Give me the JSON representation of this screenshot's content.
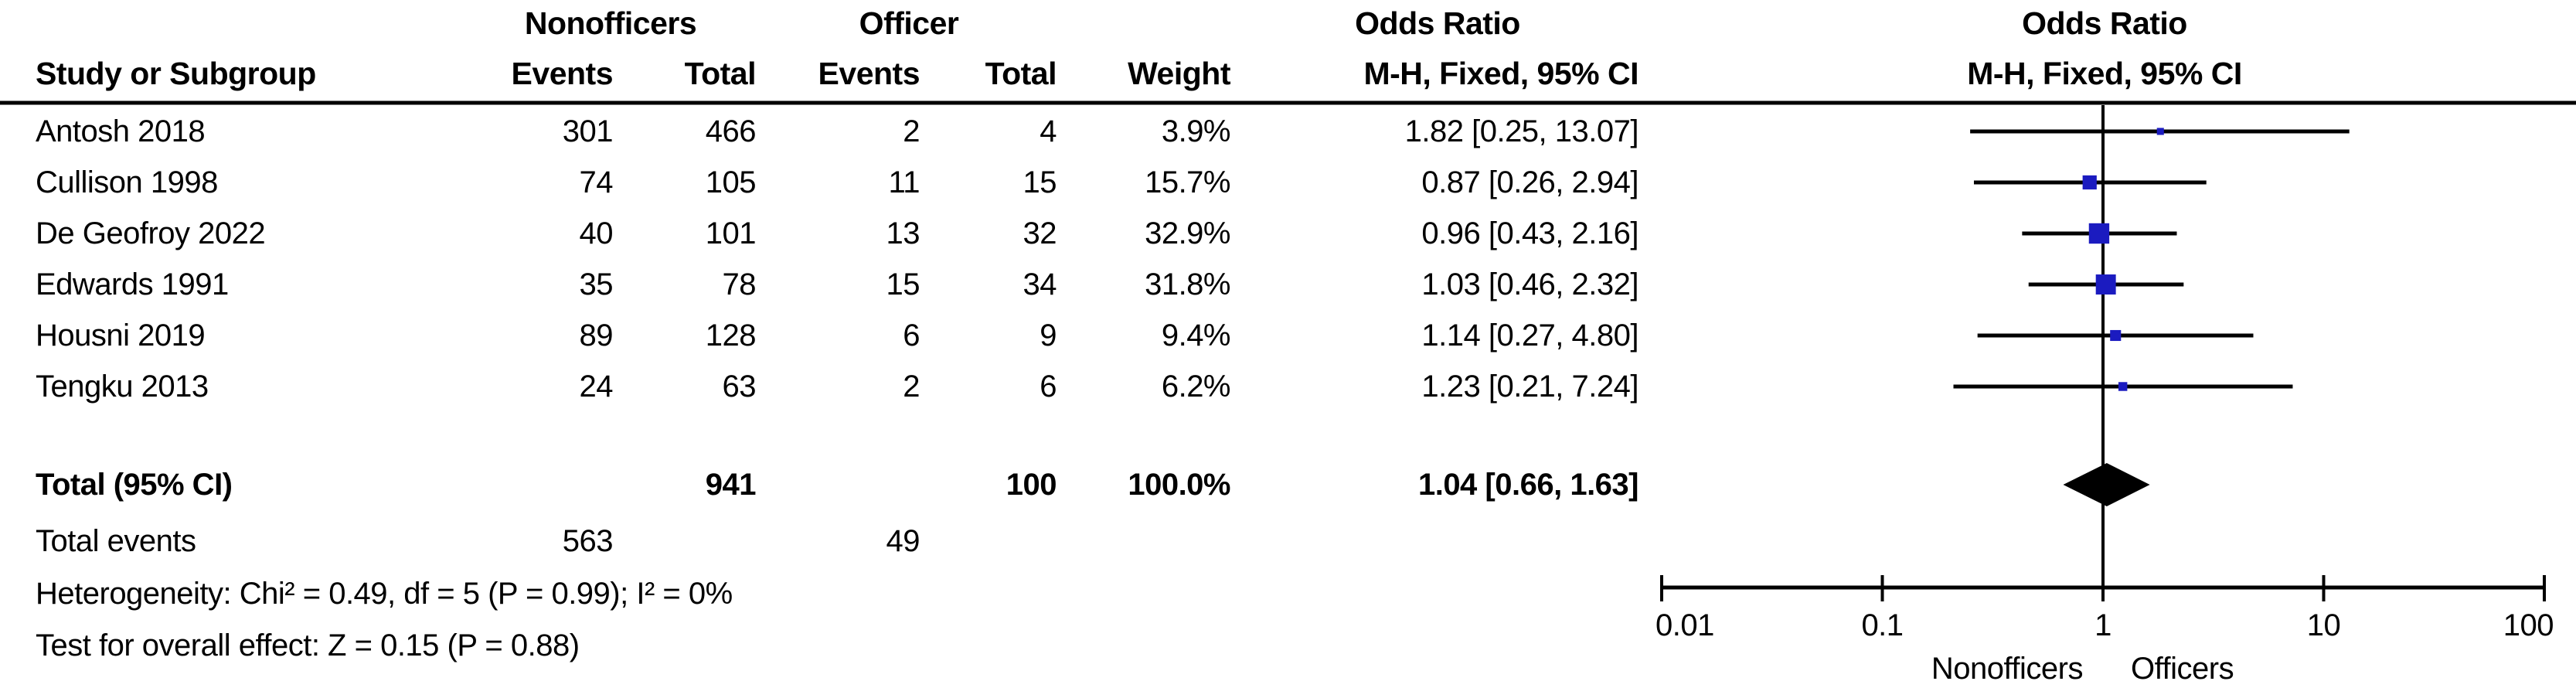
{
  "header": {
    "group_nonofficers": "Nonofficers",
    "group_officer": "Officer",
    "or_title": "Odds Ratio",
    "or_subtitle": "M-H, Fixed, 95% CI",
    "columns": {
      "study": "Study or Subgroup",
      "events": "Events",
      "total": "Total",
      "weight": "Weight"
    }
  },
  "rows": [
    {
      "study": "Antosh 2018",
      "e1": "301",
      "t1": "466",
      "e2": "2",
      "t2": "4",
      "weight": "3.9%",
      "or_text": "1.82 [0.25, 13.07]"
    },
    {
      "study": "Cullison 1998",
      "e1": "74",
      "t1": "105",
      "e2": "11",
      "t2": "15",
      "weight": "15.7%",
      "or_text": "0.87 [0.26, 2.94]"
    },
    {
      "study": "De Geofroy 2022",
      "e1": "40",
      "t1": "101",
      "e2": "13",
      "t2": "32",
      "weight": "32.9%",
      "or_text": "0.96 [0.43, 2.16]"
    },
    {
      "study": "Edwards 1991",
      "e1": "35",
      "t1": "78",
      "e2": "15",
      "t2": "34",
      "weight": "31.8%",
      "or_text": "1.03 [0.46, 2.32]"
    },
    {
      "study": "Housni 2019",
      "e1": "89",
      "t1": "128",
      "e2": "6",
      "t2": "9",
      "weight": "9.4%",
      "or_text": "1.14 [0.27, 4.80]"
    },
    {
      "study": "Tengku 2013",
      "e1": "24",
      "t1": "63",
      "e2": "2",
      "t2": "6",
      "weight": "6.2%",
      "or_text": "1.23 [0.21, 7.24]"
    }
  ],
  "totals": {
    "label": "Total (95% CI)",
    "t1": "941",
    "t2": "100",
    "weight": "100.0%",
    "or_text": "1.04 [0.66, 1.63]",
    "events_label": "Total events",
    "e1": "563",
    "e2": "49"
  },
  "footnotes": {
    "heterogeneity": "Heterogeneity: Chi² = 0.49, df = 5 (P = 0.99); I² = 0%",
    "overall_effect": "Test for overall effect: Z = 0.15 (P = 0.88)"
  },
  "chart_data": {
    "type": "forest",
    "scale": "log",
    "xlim": [
      0.01,
      100
    ],
    "x_tick_labels": [
      "0.01",
      "0.1",
      "1",
      "10",
      "100"
    ],
    "x_tick_values": [
      0.01,
      0.1,
      1,
      10,
      100
    ],
    "reference_line": 1,
    "favours_left": "Nonofficers",
    "favours_right": "Officers",
    "effect_measure": "Odds Ratio",
    "method": "M-H, Fixed, 95% CI",
    "marker_color": "#1b1bc0",
    "line_color": "#000000",
    "studies": [
      {
        "name": "Antosh 2018",
        "or": 1.82,
        "lo": 0.25,
        "hi": 13.07,
        "weight": 3.9
      },
      {
        "name": "Cullison 1998",
        "or": 0.87,
        "lo": 0.26,
        "hi": 2.94,
        "weight": 15.7
      },
      {
        "name": "De Geofroy 2022",
        "or": 0.96,
        "lo": 0.43,
        "hi": 2.16,
        "weight": 32.9
      },
      {
        "name": "Edwards 1991",
        "or": 1.03,
        "lo": 0.46,
        "hi": 2.32,
        "weight": 31.8
      },
      {
        "name": "Housni 2019",
        "or": 1.14,
        "lo": 0.27,
        "hi": 4.8,
        "weight": 9.4
      },
      {
        "name": "Tengku 2013",
        "or": 1.23,
        "lo": 0.21,
        "hi": 7.24,
        "weight": 6.2
      }
    ],
    "total": {
      "or": 1.04,
      "lo": 0.66,
      "hi": 1.63
    }
  }
}
